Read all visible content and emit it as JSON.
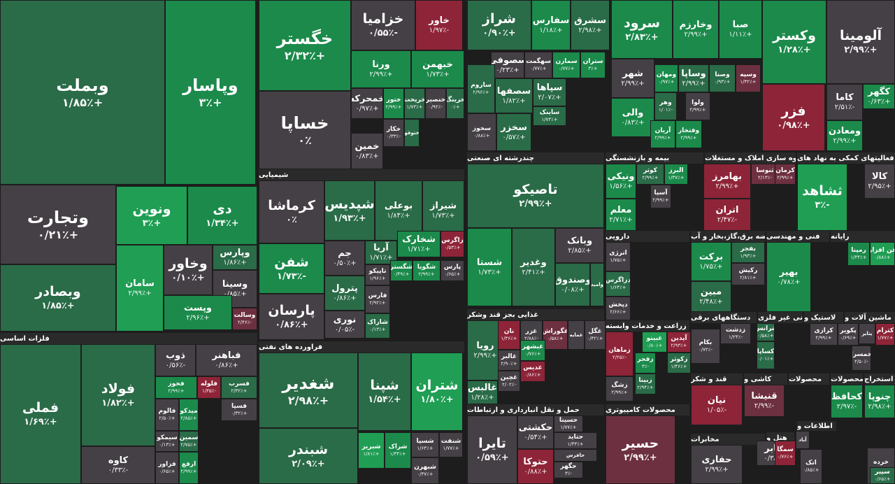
{
  "colors": {
    "strong_up": "#1f9e54",
    "up": "#1b8a4b",
    "slight_up": "#2a6b48",
    "flat": "#454045",
    "down": "#6d3040",
    "strong_down": "#8e2438",
    "background": "#1d1d1d"
  },
  "sectors": [
    {
      "label": "فلزات اساسی"
    },
    {
      "label": "شیمیایی"
    },
    {
      "label": "فراورده های نفتی"
    },
    {
      "label": "چندرشته ای صنعتی"
    },
    {
      "label": "غذایی بجز قند وشکر"
    },
    {
      "label": "حمل و نقل انبارداری و ارتباطات"
    },
    {
      "label": "بیمه و بازنشستگی"
    },
    {
      "label": "انبوه سازی املاک و مستغلات"
    },
    {
      "label": "فعالیتهای کمکی به نهاد های"
    },
    {
      "label": "دارویی"
    },
    {
      "label": "عرضه برق،گاز،بخار و آب"
    },
    {
      "label": "فنی و مهندسی"
    },
    {
      "label": "رایانه"
    },
    {
      "label": "زراعت و خدمات وابسته"
    },
    {
      "label": "دستگاههای برقی"
    },
    {
      "label": "کانی غیر فلزی"
    },
    {
      "label": "لاستیک و"
    },
    {
      "label": "ماشین آلات و"
    },
    {
      "label": "محصولات کامپیوتری"
    },
    {
      "label": "قند و شکر"
    },
    {
      "label": "کاشی و"
    },
    {
      "label": "محصولات"
    },
    {
      "label": "محصولات"
    },
    {
      "label": "استخراج"
    },
    {
      "label": "مخابرات"
    },
    {
      "label": "هتل و"
    },
    {
      "label": "اطلاعات و"
    }
  ],
  "tiles": [
    {
      "name": "وبملت",
      "change": "+۱/۸۵٪"
    },
    {
      "name": "وپاسار",
      "change": "+۳٪"
    },
    {
      "name": "وتجارت",
      "change": "+۰/۲۱٪"
    },
    {
      "name": "ونوین",
      "change": "+۳٪"
    },
    {
      "name": "دی",
      "change": "+۱/۳۴٪"
    },
    {
      "name": "وبصادر",
      "change": "+۱/۸۵٪"
    },
    {
      "name": "سامان",
      "change": "+۲/۹۹٪"
    },
    {
      "name": "وخاور",
      "change": "+۰/۱۰٪"
    },
    {
      "name": "وپارس",
      "change": "+۱/۸۶٪"
    },
    {
      "name": "وسینا",
      "change": "+۰/۸۵٪"
    },
    {
      "name": "وپست",
      "change": "+۲/۹۶٪"
    },
    {
      "name": "وسالت",
      "change": "-۲/۴۶٪"
    },
    {
      "name": "فملی",
      "change": "+۱/۶۹٪"
    },
    {
      "name": "فولاد",
      "change": "+۱/۸۲٪"
    },
    {
      "name": "ذوب",
      "change": "-۰/۵۶٪"
    },
    {
      "name": "فباهنر",
      "change": "+۰/۸۶٪"
    },
    {
      "name": "فخوز",
      "change": "+۲/۹۹٪"
    },
    {
      "name": "فلوله",
      "change": "-۱/۳۵٪"
    },
    {
      "name": "فسرب",
      "change": "+۲/۳۲٪"
    },
    {
      "name": "فسپا",
      "change": "+۰/۳۲٪"
    },
    {
      "name": "فالوم",
      "change": "+۲/۵۰٪"
    },
    {
      "name": "میدکو",
      "change": "+۲/۸۵٪"
    },
    {
      "name": "سیمکو",
      "change": "+۰/۱۳٪"
    },
    {
      "name": "سمین",
      "change": "+۲/۷۵٪"
    },
    {
      "name": "کاوه",
      "change": "-۰/۳۳٪"
    },
    {
      "name": "فزاور",
      "change": "+۰/۶۵٪"
    },
    {
      "name": "ارفع",
      "change": "+۲/۹۹٪"
    },
    {
      "name": "خگستر",
      "change": "+۲/۳۲٪"
    },
    {
      "name": "خساپا",
      "change": "۰٪"
    },
    {
      "name": "خزامیا",
      "change": "-۰/۵۵٪"
    },
    {
      "name": "خاور",
      "change": "-۱/۹۷٪"
    },
    {
      "name": "ورنا",
      "change": "+۲/۹۹٪"
    },
    {
      "name": "خبهمن",
      "change": "+۱/۷۳٪"
    },
    {
      "name": "خمحرکه",
      "change": "+۰/۹۷٪"
    },
    {
      "name": "ختور",
      "change": "+۲/۹۹٪"
    },
    {
      "name": "خریخت",
      "change": "+۱/۷۳٪"
    },
    {
      "name": "خنصیر",
      "change": "-۰/۹۲٪"
    },
    {
      "name": "خرینگ",
      "change": "+۰٪"
    },
    {
      "name": "خکار",
      "change": "-۰/۳۳٪"
    },
    {
      "name": "ختوقو",
      "change": "+۲/۰۱٪"
    },
    {
      "name": "خمین",
      "change": "+۰/۸۳٪"
    },
    {
      "name": "کرماشا",
      "change": "۰٪"
    },
    {
      "name": "شپدیس",
      "change": "+۱/۹۳٪"
    },
    {
      "name": "بوعلی",
      "change": "+۱/۸۴٪"
    },
    {
      "name": "شیراز",
      "change": "+۱/۷۳٪"
    },
    {
      "name": "جم",
      "change": "+۰/۵۰٪"
    },
    {
      "name": "آریا",
      "change": "+۱/۷۱٪"
    },
    {
      "name": "شخارک",
      "change": "+۱/۷۱٪"
    },
    {
      "name": "زاگرس",
      "change": "+۰/۵۳٪"
    },
    {
      "name": "شفن",
      "change": "-۱/۷۳٪"
    },
    {
      "name": "تاپیکو",
      "change": "+۱/۹۶٪"
    },
    {
      "name": "شگستر",
      "change": "+۰/۴۹٪"
    },
    {
      "name": "شگویا",
      "change": "+۲/۹۹٪"
    },
    {
      "name": "پارس",
      "change": "+۰/۶۵٪"
    },
    {
      "name": "پترول",
      "change": "+۰/۸۶٪"
    },
    {
      "name": "فارس",
      "change": "+۲/۹۲٪"
    },
    {
      "name": "پارسان",
      "change": "+۰/۸۶٪"
    },
    {
      "name": "نوری",
      "change": "-۰/۰۵٪"
    },
    {
      "name": "شاراک",
      "change": "+۰/۱۳٪"
    },
    {
      "name": "شغدیر",
      "change": "+۲/۹۸٪"
    },
    {
      "name": "شپنا",
      "change": "+۱/۵۴٪"
    },
    {
      "name": "شتران",
      "change": "+۱/۸۰٪"
    },
    {
      "name": "شبندر",
      "change": "+۲/۰۹٪"
    },
    {
      "name": "شبریز",
      "change": "+۱/۸۱٪"
    },
    {
      "name": "شراک",
      "change": "+۱/۳۴٪"
    },
    {
      "name": "شسپا",
      "change": "+۱/۶۴٪"
    },
    {
      "name": "شنفت",
      "change": "+۱/۷۷٪"
    },
    {
      "name": "شبهرن",
      "change": "+۰/۳۷٪"
    },
    {
      "name": "شراز",
      "change": "+۰/۹۰٪"
    },
    {
      "name": "سفارس",
      "change": "+۱/۱۸٪"
    },
    {
      "name": "سشرق",
      "change": "+۲/۹۸٪"
    },
    {
      "name": "سصوفی",
      "change": "+۰/۲۳٪"
    },
    {
      "name": "سهگمت",
      "change": "+۰/۷۷٪"
    },
    {
      "name": "سمازن",
      "change": "+۰/۷۷٪"
    },
    {
      "name": "ستران",
      "change": "+۳٪"
    },
    {
      "name": "ساروم",
      "change": "+۲/۹۶٪"
    },
    {
      "name": "سصفها",
      "change": "+۱/۸۲٪"
    },
    {
      "name": "سپاها",
      "change": "+۲/۰۷٪"
    },
    {
      "name": "ساینک",
      "change": "+۱/۷۳٪"
    },
    {
      "name": "سخوز",
      "change": "+۰/۸۸٪"
    },
    {
      "name": "سخزر",
      "change": "+۰/۵۷٪"
    },
    {
      "name": "سرود",
      "change": "+۲/۸۳٪"
    },
    {
      "name": "وخارزم",
      "change": "+۲/۹۹٪"
    },
    {
      "name": "صبا",
      "change": "+۱/۱۱٪"
    },
    {
      "name": "شهر",
      "change": "+۲/۹۹٪"
    },
    {
      "name": "ومهان",
      "change": "+۰/۹۷٪"
    },
    {
      "name": "وساپا",
      "change": "+۲/۹۹٪"
    },
    {
      "name": "وصنا",
      "change": "+۰/۹۳٪"
    },
    {
      "name": "وسپه",
      "change": "+۱/۳۲٪"
    },
    {
      "name": "وهر",
      "change": "-۱/۰۱٪"
    },
    {
      "name": "ولوا",
      "change": "+۲/۹۹٪"
    },
    {
      "name": "والی",
      "change": "+۰/۸۳٪"
    },
    {
      "name": "آریان",
      "change": "+۲/۹۹٪"
    },
    {
      "name": "وفتخار",
      "change": "+۲/۹۹٪"
    },
    {
      "name": "وکستر",
      "change": "+۱/۲۸٪"
    },
    {
      "name": "آلومینا",
      "change": "+۲/۹۹٪"
    },
    {
      "name": "فزر",
      "change": "+۰/۹۸٪"
    },
    {
      "name": "کاما",
      "change": "-۲/۵۱٪"
    },
    {
      "name": "کگهر",
      "change": "+۰/۶۳٪"
    },
    {
      "name": "ومعادن",
      "change": "+۲/۹۹٪"
    },
    {
      "name": "تاصیکو",
      "change": "+۲/۹۹٪"
    },
    {
      "name": "شستا",
      "change": "+۱/۷۳٪"
    },
    {
      "name": "وغدیر",
      "change": "+۲/۴۱٪"
    },
    {
      "name": "وبانک",
      "change": "+۲/۸۵٪"
    },
    {
      "name": "وصندوق",
      "change": "+۰/۰۸٪"
    },
    {
      "name": "وامید",
      "change": "+۱/۵۳٪"
    },
    {
      "name": "ونیکی",
      "change": "+۱/۵۶٪"
    },
    {
      "name": "کوثر",
      "change": "+۲/۹۹٪"
    },
    {
      "name": "البرز",
      "change": "+۱/۳۷٪"
    },
    {
      "name": "آسیا",
      "change": "+۲/۹۹٪"
    },
    {
      "name": "معلم",
      "change": "+۲/۷۱٪"
    },
    {
      "name": "بهامرز",
      "change": "+۲/۹۹٪"
    },
    {
      "name": "ثنوسا",
      "change": "-۲/۱۳٪"
    },
    {
      "name": "کرمان",
      "change": "+۲/۹۹٪"
    },
    {
      "name": "اتران",
      "change": "-۲/۴۷٪"
    },
    {
      "name": "ثشاهد",
      "change": "-۳٪"
    },
    {
      "name": "کالا",
      "change": "+۲/۹۵٪"
    },
    {
      "name": "انرژی",
      "change": "+۱/۷۵٪"
    },
    {
      "name": "دزاگرس",
      "change": "+۱/۶۴٪"
    },
    {
      "name": "دپخش",
      "change": "+۲/۶۶٪"
    },
    {
      "name": "برکت",
      "change": "+۱/۷۵٪"
    },
    {
      "name": "مبین",
      "change": "+۲/۴۸٪"
    },
    {
      "name": "بفجر",
      "change": "+۱/۹۳٪"
    },
    {
      "name": "رکیش",
      "change": "+۲/۸۱٪"
    },
    {
      "name": "بهیر",
      "change": "+۰/۷۸٪"
    },
    {
      "name": "رمپنا",
      "change": "+۱/۴۴٪"
    },
    {
      "name": "فن افزار",
      "change": "+۰/۸۸٪"
    },
    {
      "name": "رویا",
      "change": "+۲/۹۹٪"
    },
    {
      "name": "نان",
      "change": "+۱/۳۶٪"
    },
    {
      "name": "غزر",
      "change": "-۲/۸۸٪"
    },
    {
      "name": "غگوراش",
      "change": "+۰/۵۸٪"
    },
    {
      "name": "غمایه",
      "change": "-۲/۸۱٪"
    },
    {
      "name": "غگل",
      "change": "+۰/۴۲٪"
    },
    {
      "name": "غبشهر",
      "change": "+۰/۷۶٪"
    },
    {
      "name": "غالبر",
      "change": "+۲/۹۰٪"
    },
    {
      "name": "غدیس",
      "change": "+۰/۸۶٪"
    },
    {
      "name": "غچین",
      "change": "-۲/۰۲٪"
    },
    {
      "name": "غالبس",
      "change": "+۱/۲۸٪"
    },
    {
      "name": "غبینو",
      "change": "+۰/۸۰٪"
    },
    {
      "name": "آپدین",
      "change": "+۲/۹۳٪"
    },
    {
      "name": "زماهان",
      "change": "-۲/۲۵٪"
    },
    {
      "name": "زفجر",
      "change": "-۳٪"
    },
    {
      "name": "زبینا",
      "change": "+۲/۹۴٪"
    },
    {
      "name": "زکوثر",
      "change": "+۱/۴۶٪"
    },
    {
      "name": "زشگ",
      "change": "+۲/۹۹٪"
    },
    {
      "name": "زدشت",
      "change": "-۱/۲۴٪"
    },
    {
      "name": "بکام",
      "change": "-۰/۷۲٪"
    },
    {
      "name": "بترانس",
      "change": "+۰/۵۸٪"
    },
    {
      "name": "کساپا",
      "change": "+۰/۰۱٪"
    },
    {
      "name": "کرازی",
      "change": "+۲/۹۹٪"
    },
    {
      "name": "پکویر",
      "change": "+۰/۶۹٪"
    },
    {
      "name": "پتایر",
      "change": "+۱/۵۷٪"
    },
    {
      "name": "کترام",
      "change": "+۱/۷۷٪"
    },
    {
      "name": "خمسرا",
      "change": "-۲/۵۰٪"
    },
    {
      "name": "تایرا",
      "change": "+۰/۵۹٪"
    },
    {
      "name": "حکشتی",
      "change": "+۰/۵۴٪"
    },
    {
      "name": "حسینا",
      "change": "+۱/۷۷٪"
    },
    {
      "name": "حتاید",
      "change": "+۱/۳۳٪"
    },
    {
      "name": "حافرس",
      "change": "+۰/۹۸٪"
    },
    {
      "name": "حتوکا",
      "change": "+۰/۸۸٪"
    },
    {
      "name": "حگهر",
      "change": "-۳٪"
    },
    {
      "name": "حسیر",
      "change": "+۲/۹۹٪"
    },
    {
      "name": "نیان",
      "change": "-۱/۰۵٪"
    },
    {
      "name": "قنیشا",
      "change": "-۲/۹۹٪"
    },
    {
      "name": "کحافظ",
      "change": "-۲/۹۷٪"
    },
    {
      "name": "چنوپا",
      "change": "+۲/۹۸٪"
    },
    {
      "name": "حفاری",
      "change": "+۲/۹۹٪"
    },
    {
      "name": "اخابر",
      "change": "+۰/۳۸٪"
    },
    {
      "name": "سمگا",
      "change": "+۰/۷۶٪"
    },
    {
      "name": "آباد",
      "change": "-۲/۹۹٪"
    },
    {
      "name": "اتک",
      "change": "+۰/۸۵٪"
    },
    {
      "name": "خرده",
      "change": "+۰/۵۸٪"
    },
    {
      "name": "سپیر",
      "change": "+۰/۶۵٪"
    },
    {
      "name": "ستاک",
      "change": "+۰/۵۰٪"
    }
  ]
}
